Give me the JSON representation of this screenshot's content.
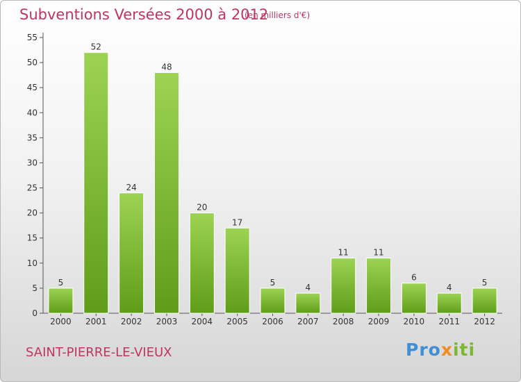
{
  "header": {
    "title": "Subventions Versées 2000 à 2012",
    "subtitle": "(en milliers d'€)"
  },
  "footer": {
    "place": "SAINT-PIERRE-LE-VIEUX",
    "brand": "Proxiti"
  },
  "colors": {
    "bar_top": "#9dd353",
    "bar_bottom": "#5f9d18",
    "title": "#c0355e"
  },
  "chart_data": {
    "type": "bar",
    "title": "Subventions Versées 2000 à 2012",
    "subtitle": "(en milliers d'€)",
    "categories": [
      "2000",
      "2001",
      "2002",
      "2003",
      "2004",
      "2005",
      "2006",
      "2007",
      "2008",
      "2009",
      "2010",
      "2011",
      "2012"
    ],
    "values": [
      5,
      52,
      24,
      48,
      20,
      17,
      5,
      4,
      11,
      11,
      6,
      4,
      5
    ],
    "ylim": [
      0,
      55
    ],
    "yticks": [
      0,
      5,
      10,
      15,
      20,
      25,
      30,
      35,
      40,
      45,
      50,
      55
    ],
    "grid": false,
    "legend": "none"
  }
}
